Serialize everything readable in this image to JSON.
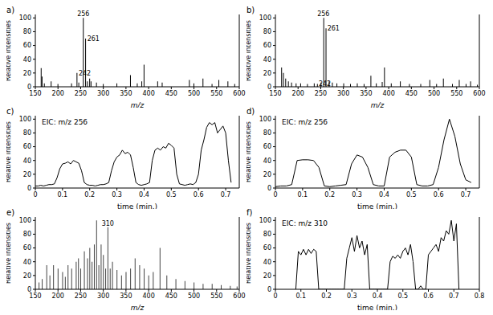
{
  "chart_data": [
    {
      "type": "bar",
      "title": "a)",
      "x_label": "m/z",
      "y_label": "Relative intensities",
      "color": "#000000",
      "x": [
        163,
        165,
        170,
        185,
        200,
        230,
        242,
        246,
        256,
        261,
        265,
        270,
        273,
        285,
        300,
        330,
        360,
        375,
        385,
        390,
        420,
        430,
        490,
        500,
        520,
        540,
        555,
        575,
        590
      ],
      "values": [
        27,
        15,
        5,
        8,
        4,
        5,
        20,
        6,
        100,
        70,
        8,
        12,
        8,
        6,
        4,
        5,
        17,
        5,
        8,
        32,
        8,
        6,
        10,
        5,
        12,
        4,
        10,
        8,
        4
      ],
      "xlim": [
        150,
        600
      ],
      "ylim": [
        0,
        105
      ],
      "xticks": [
        150,
        200,
        250,
        300,
        350,
        400,
        450,
        500,
        550,
        600
      ],
      "yticks": [
        0,
        20,
        40,
        60,
        80,
        100
      ],
      "annotations": [
        {
          "text": "256",
          "x": 256,
          "y": 100
        },
        {
          "text": "261",
          "x": 261,
          "y": 70
        },
        {
          "text": "242",
          "x": 242,
          "y": 20
        }
      ]
    },
    {
      "type": "bar",
      "title": "b)",
      "x_label": "m/z",
      "y_label": "Relative intensities",
      "color": "#000000",
      "x": [
        163,
        167,
        172,
        178,
        185,
        195,
        205,
        220,
        235,
        242,
        250,
        256,
        261,
        268,
        275,
        285,
        300,
        315,
        330,
        345,
        360,
        372,
        385,
        390,
        405,
        425,
        445,
        470,
        490,
        505,
        520,
        540,
        555,
        570,
        580,
        595
      ],
      "values": [
        28,
        20,
        12,
        8,
        6,
        5,
        5,
        4,
        5,
        4,
        6,
        100,
        85,
        8,
        6,
        5,
        5,
        4,
        5,
        4,
        16,
        5,
        7,
        28,
        5,
        8,
        4,
        4,
        10,
        4,
        12,
        4,
        10,
        4,
        8,
        3
      ],
      "xlim": [
        150,
        600
      ],
      "ylim": [
        0,
        105
      ],
      "xticks": [
        150,
        200,
        250,
        300,
        350,
        400,
        450,
        500,
        550,
        600
      ],
      "yticks": [
        0,
        20,
        40,
        60,
        80,
        100
      ],
      "annotations": [
        {
          "text": "256",
          "x": 256,
          "y": 100
        },
        {
          "text": "261",
          "x": 261,
          "y": 85
        },
        {
          "text": "242",
          "x": 242,
          "y": 4
        }
      ]
    },
    {
      "type": "line",
      "title": "c)",
      "subtitle": "EIC: m/z 256",
      "x_label": "time (min.)",
      "y_label": "Relative intensities",
      "color": "#000000",
      "x": [
        0,
        0.01,
        0.02,
        0.03,
        0.04,
        0.05,
        0.06,
        0.07,
        0.08,
        0.09,
        0.1,
        0.11,
        0.12,
        0.13,
        0.14,
        0.15,
        0.16,
        0.17,
        0.18,
        0.19,
        0.2,
        0.21,
        0.22,
        0.23,
        0.24,
        0.25,
        0.26,
        0.27,
        0.28,
        0.29,
        0.3,
        0.31,
        0.32,
        0.33,
        0.34,
        0.35,
        0.36,
        0.37,
        0.38,
        0.39,
        0.4,
        0.41,
        0.42,
        0.43,
        0.44,
        0.45,
        0.46,
        0.47,
        0.48,
        0.49,
        0.5,
        0.51,
        0.52,
        0.53,
        0.54,
        0.55,
        0.56,
        0.57,
        0.58,
        0.59,
        0.6,
        0.61,
        0.62,
        0.63,
        0.64,
        0.65,
        0.66,
        0.67,
        0.68,
        0.69,
        0.7,
        0.71,
        0.72
      ],
      "values": [
        3,
        3,
        4,
        3,
        4,
        5,
        5,
        6,
        15,
        28,
        35,
        36,
        38,
        35,
        40,
        38,
        36,
        25,
        8,
        5,
        4,
        4,
        3,
        4,
        5,
        5,
        6,
        8,
        25,
        38,
        45,
        48,
        55,
        50,
        52,
        48,
        30,
        8,
        5,
        4,
        5,
        6,
        8,
        40,
        55,
        58,
        55,
        60,
        58,
        65,
        62,
        58,
        20,
        6,
        5,
        4,
        5,
        6,
        5,
        8,
        20,
        55,
        70,
        88,
        95,
        92,
        95,
        80,
        85,
        90,
        80,
        40,
        8
      ],
      "xlim": [
        0,
        0.75
      ],
      "ylim": [
        0,
        105
      ],
      "xticks": [
        0,
        0.1,
        0.2,
        0.3,
        0.4,
        0.5,
        0.6,
        0.7
      ],
      "yticks": [
        0,
        20,
        40,
        60,
        80,
        100
      ]
    },
    {
      "type": "line",
      "title": "d)",
      "subtitle": "EIC: m/z 256",
      "x_label": "time (min.)",
      "y_label": "Relative intensities",
      "color": "#000000",
      "x": [
        0,
        0.02,
        0.04,
        0.06,
        0.08,
        0.1,
        0.12,
        0.14,
        0.16,
        0.18,
        0.2,
        0.22,
        0.24,
        0.26,
        0.28,
        0.3,
        0.32,
        0.34,
        0.36,
        0.38,
        0.4,
        0.42,
        0.44,
        0.46,
        0.48,
        0.5,
        0.52,
        0.54,
        0.56,
        0.58,
        0.6,
        0.62,
        0.64,
        0.66,
        0.68,
        0.7,
        0.72
      ],
      "values": [
        2,
        3,
        3,
        5,
        40,
        41,
        41,
        40,
        30,
        3,
        2,
        3,
        4,
        5,
        35,
        48,
        45,
        30,
        5,
        3,
        3,
        45,
        52,
        55,
        55,
        45,
        5,
        3,
        3,
        5,
        30,
        70,
        100,
        75,
        35,
        12,
        8
      ],
      "xlim": [
        0,
        0.75
      ],
      "ylim": [
        0,
        105
      ],
      "xticks": [
        0,
        0.1,
        0.2,
        0.3,
        0.4,
        0.5,
        0.6,
        0.7
      ],
      "yticks": [
        0,
        20,
        40,
        60,
        80,
        100
      ]
    },
    {
      "type": "bar",
      "title": "e)",
      "x_label": "m/z",
      "y_label": "Relative intensities",
      "color": "#444444",
      "x": [
        158,
        165,
        175,
        182,
        190,
        200,
        210,
        216,
        222,
        230,
        240,
        245,
        250,
        258,
        265,
        270,
        275,
        280,
        285,
        290,
        295,
        300,
        305,
        310,
        315,
        320,
        330,
        340,
        350,
        360,
        370,
        380,
        390,
        400,
        410,
        425,
        440,
        460,
        480,
        500,
        520,
        540,
        560,
        580,
        595
      ],
      "values": [
        10,
        15,
        35,
        20,
        35,
        30,
        25,
        18,
        35,
        30,
        40,
        45,
        30,
        55,
        45,
        60,
        40,
        65,
        100,
        35,
        65,
        50,
        30,
        90,
        30,
        40,
        28,
        20,
        25,
        30,
        45,
        35,
        30,
        20,
        25,
        60,
        20,
        15,
        12,
        10,
        8,
        8,
        6,
        5,
        4
      ],
      "xlim": [
        150,
        600
      ],
      "ylim": [
        0,
        105
      ],
      "xticks": [
        150,
        200,
        250,
        300,
        350,
        400,
        450,
        500,
        550,
        600
      ],
      "yticks": [
        0,
        20,
        40,
        60,
        80,
        100
      ],
      "annotations": [
        {
          "text": "310",
          "x": 310,
          "y": 90
        }
      ]
    },
    {
      "type": "line",
      "title": "f)",
      "subtitle": "EIC: m/z 310",
      "x_label": "time (min.)",
      "y_label": "Relative intensities",
      "color": "#000000",
      "x": [
        0.08,
        0.09,
        0.1,
        0.11,
        0.12,
        0.13,
        0.14,
        0.15,
        0.16,
        0.17,
        0.18,
        0.19,
        0.2,
        0.21,
        0.22,
        0.23,
        0.24,
        0.25,
        0.26,
        0.27,
        0.28,
        0.29,
        0.3,
        0.31,
        0.32,
        0.33,
        0.34,
        0.35,
        0.36,
        0.37,
        0.38,
        0.39,
        0.4,
        0.41,
        0.42,
        0.43,
        0.44,
        0.45,
        0.46,
        0.47,
        0.48,
        0.49,
        0.5,
        0.51,
        0.52,
        0.53,
        0.54,
        0.55,
        0.56,
        0.57,
        0.58,
        0.59,
        0.6,
        0.61,
        0.62,
        0.63,
        0.64,
        0.65,
        0.66,
        0.67,
        0.68,
        0.69,
        0.7,
        0.71,
        0.72
      ],
      "values": [
        0,
        55,
        50,
        58,
        50,
        58,
        52,
        58,
        55,
        0,
        0,
        0,
        0,
        0,
        0,
        0,
        0,
        0,
        0,
        0,
        45,
        60,
        75,
        55,
        78,
        60,
        70,
        50,
        65,
        0,
        0,
        0,
        0,
        0,
        0,
        0,
        0,
        40,
        48,
        45,
        50,
        45,
        55,
        60,
        50,
        65,
        40,
        0,
        0,
        5,
        0,
        0,
        50,
        55,
        60,
        65,
        55,
        75,
        70,
        85,
        80,
        100,
        70,
        95,
        0
      ],
      "xlim": [
        0,
        0.8
      ],
      "ylim": [
        0,
        105
      ],
      "xticks": [
        0,
        0.1,
        0.2,
        0.3,
        0.4,
        0.5,
        0.6,
        0.7,
        0.8
      ],
      "yticks": [
        0,
        20,
        40,
        60,
        80,
        100
      ]
    }
  ]
}
